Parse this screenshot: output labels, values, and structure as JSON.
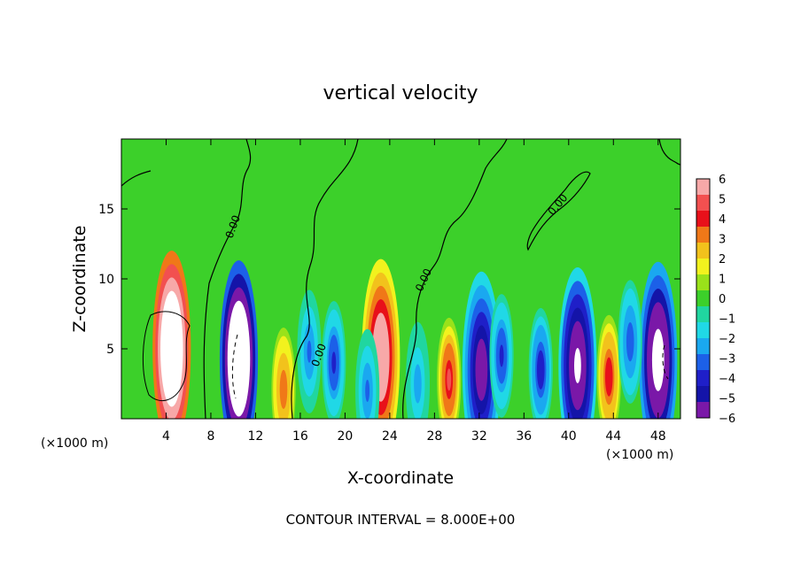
{
  "chart_data": {
    "type": "heatmap",
    "title": "vertical velocity",
    "xlabel": "X-coordinate",
    "ylabel": "Z-coordinate",
    "x_unit_left": "(×1000 m)",
    "x_unit_right": "(×1000 m)",
    "footer": "CONTOUR INTERVAL = 8.000E+00",
    "xlim": [
      0,
      50
    ],
    "ylim": [
      0,
      20
    ],
    "xticks": [
      4,
      8,
      12,
      16,
      20,
      24,
      28,
      32,
      36,
      40,
      44,
      48
    ],
    "xtick_labels": [
      "4",
      "8",
      "12",
      "16",
      "20",
      "24",
      "28",
      "32",
      "36",
      "40",
      "44",
      "48"
    ],
    "yticks": [
      5,
      10,
      15
    ],
    "ytick_labels": [
      "5",
      "10",
      "15"
    ],
    "contour_labels": [
      "0.00",
      "0.00",
      "0.00",
      "0.00",
      "0.00"
    ],
    "colorbar": {
      "min": -6,
      "max": 6,
      "tick_values": [
        6,
        5,
        4,
        3,
        2,
        1,
        0,
        -1,
        -2,
        -3,
        -4,
        -5,
        -6
      ],
      "tick_labels": [
        "6",
        "5",
        "4",
        "3",
        "2",
        "1",
        "0",
        "−1",
        "−2",
        "−3",
        "−4",
        "−5",
        "−6"
      ],
      "colors": [
        "#f7a8a8",
        "#f25050",
        "#e8101a",
        "#f07818",
        "#f2c21c",
        "#f2f21e",
        "#9ae21a",
        "#3cd02a",
        "#20d6a0",
        "#20d8e6",
        "#1aa8f0",
        "#1c60e8",
        "#1f1fc8",
        "#1414a8",
        "#7a18a8"
      ]
    },
    "cells": [
      {
        "x": 4.5,
        "z": 5.0,
        "value": 13.0
      },
      {
        "x": 10.5,
        "z": 4.3,
        "value": -13.0
      },
      {
        "x": 23.2,
        "z": 4.4,
        "value": 7.5
      },
      {
        "x": 29.3,
        "z": 2.8,
        "value": 5.0
      },
      {
        "x": 14.5,
        "z": 2.1,
        "value": 3.5
      },
      {
        "x": 19.0,
        "z": 4.0,
        "value": -4.0
      },
      {
        "x": 32.2,
        "z": 3.5,
        "value": -7.0
      },
      {
        "x": 34.0,
        "z": 4.5,
        "value": -4.0
      },
      {
        "x": 37.5,
        "z": 3.5,
        "value": -4.5
      },
      {
        "x": 40.8,
        "z": 3.8,
        "value": -8.0
      },
      {
        "x": 43.6,
        "z": 3.0,
        "value": 4.5
      },
      {
        "x": 48.0,
        "z": 4.2,
        "value": -9.5
      },
      {
        "x": 26.5,
        "z": 2.5,
        "value": -2.5
      },
      {
        "x": 16.8,
        "z": 4.8,
        "value": -3.0
      },
      {
        "x": 45.5,
        "z": 5.5,
        "value": -3.5
      },
      {
        "x": 22.0,
        "z": 2.0,
        "value": -3.0
      }
    ]
  }
}
